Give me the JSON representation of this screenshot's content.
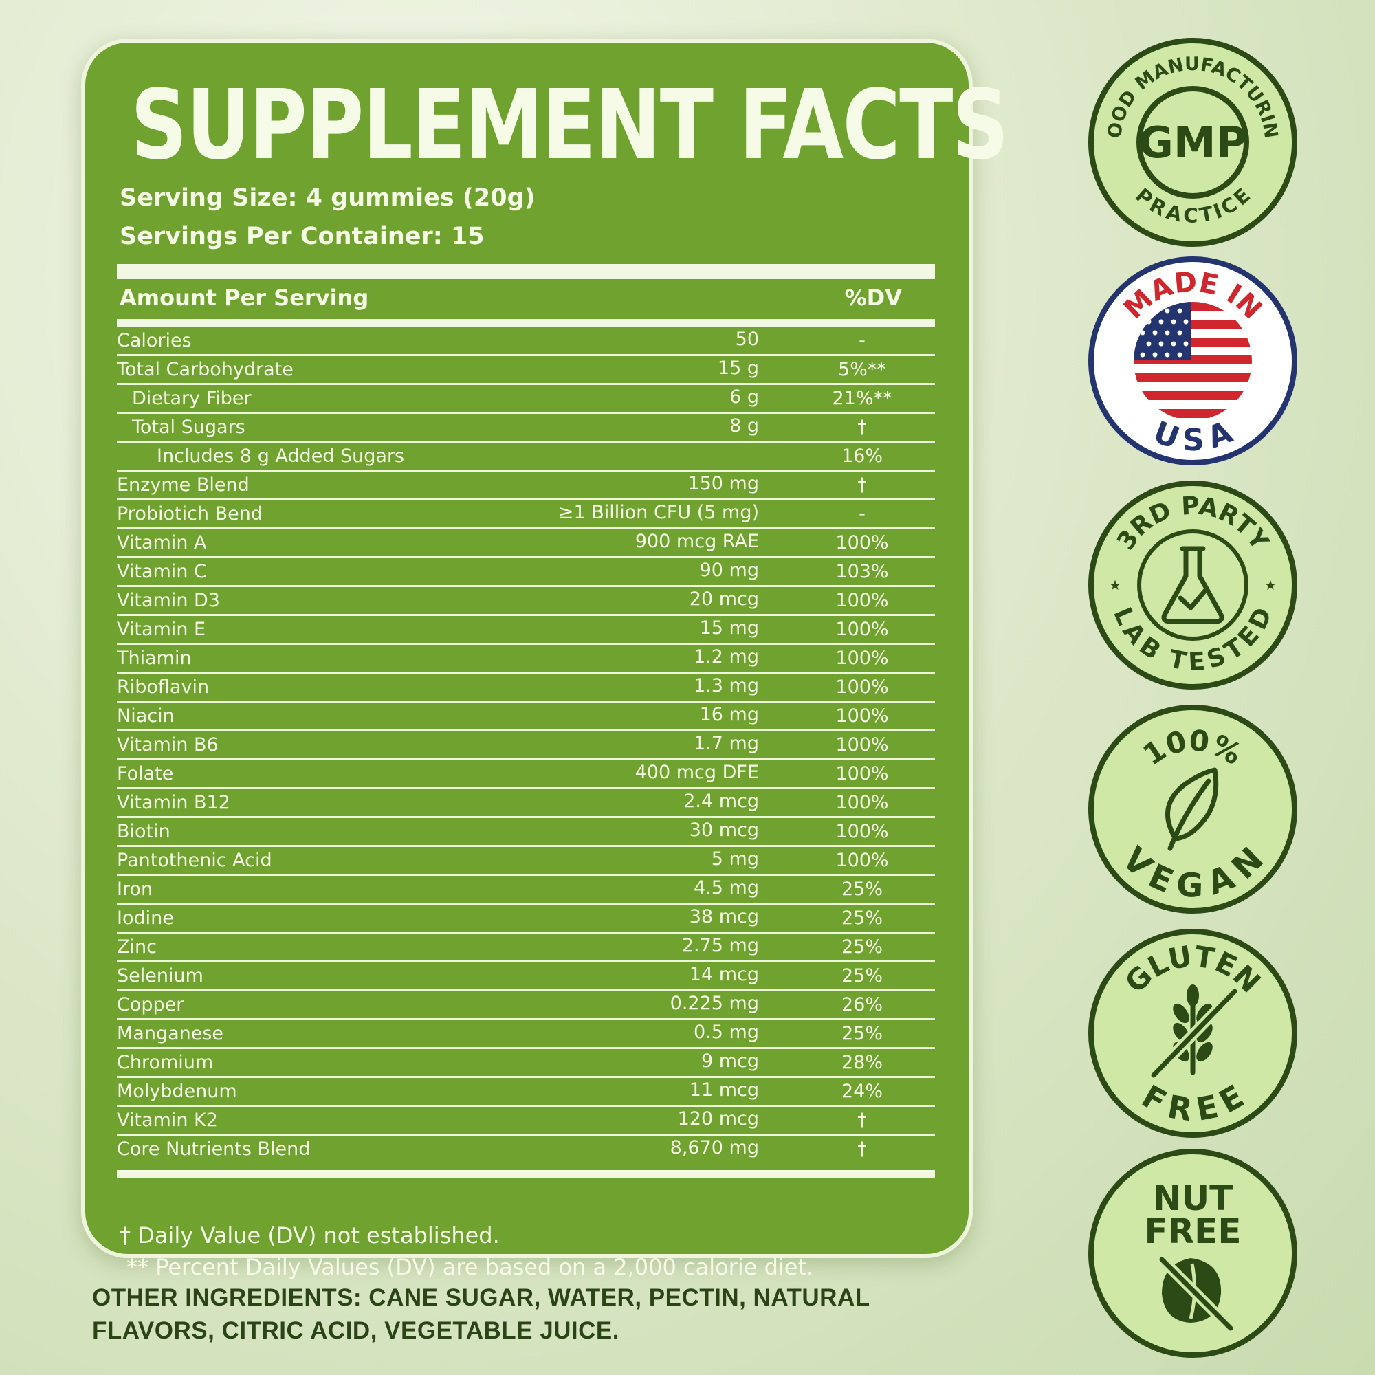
{
  "title": "SUPPLEMENT FACTS",
  "serving_size": "Serving Size: 4 gummies (20g)",
  "servings_per_container": "Servings Per Container: 15",
  "header": {
    "amount": "Amount Per Serving",
    "dv": "%DV"
  },
  "rows": [
    {
      "name": "Calories",
      "amount": "50",
      "dv": "-",
      "indent": 0
    },
    {
      "name": "Total Carbohydrate",
      "amount": "15 g",
      "dv": "5%**",
      "indent": 0
    },
    {
      "name": "Dietary Fiber",
      "amount": "6 g",
      "dv": "21%**",
      "indent": 1
    },
    {
      "name": "Total Sugars",
      "amount": "8 g",
      "dv": "†",
      "indent": 1
    },
    {
      "name": "Includes 8 g Added Sugars",
      "amount": "",
      "dv": "16%",
      "indent": 2
    },
    {
      "name": "Enzyme Blend",
      "amount": "150 mg",
      "dv": "†",
      "indent": 0
    },
    {
      "name": "Probiotich Bend",
      "amount": "≥1 Billion CFU (5 mg)",
      "dv": "-",
      "indent": 0
    },
    {
      "name": "Vitamin A",
      "amount": "900 mcg RAE",
      "dv": "100%",
      "indent": 0
    },
    {
      "name": "Vitamin C",
      "amount": "90 mg",
      "dv": "103%",
      "indent": 0
    },
    {
      "name": "Vitamin D3",
      "amount": "20 mcg",
      "dv": "100%",
      "indent": 0
    },
    {
      "name": "Vitamin E",
      "amount": "15 mg",
      "dv": "100%",
      "indent": 0
    },
    {
      "name": "Thiamin",
      "amount": "1.2 mg",
      "dv": "100%",
      "indent": 0
    },
    {
      "name": "Riboflavin",
      "amount": "1.3 mg",
      "dv": "100%",
      "indent": 0
    },
    {
      "name": "Niacin",
      "amount": "16 mg",
      "dv": "100%",
      "indent": 0
    },
    {
      "name": "Vitamin B6",
      "amount": "1.7 mg",
      "dv": "100%",
      "indent": 0
    },
    {
      "name": "Folate",
      "amount": "400 mcg DFE",
      "dv": "100%",
      "indent": 0
    },
    {
      "name": "Vitamin B12",
      "amount": "2.4 mcg",
      "dv": "100%",
      "indent": 0
    },
    {
      "name": "Biotin",
      "amount": "30 mcg",
      "dv": "100%",
      "indent": 0
    },
    {
      "name": "Pantothenic Acid",
      "amount": "5 mg",
      "dv": "100%",
      "indent": 0
    },
    {
      "name": "Iron",
      "amount": "4.5 mg",
      "dv": "25%",
      "indent": 0
    },
    {
      "name": "Iodine",
      "amount": "38 mcg",
      "dv": "25%",
      "indent": 0
    },
    {
      "name": "Zinc",
      "amount": "2.75 mg",
      "dv": "25%",
      "indent": 0
    },
    {
      "name": "Selenium",
      "amount": "14 mcg",
      "dv": "25%",
      "indent": 0
    },
    {
      "name": "Copper",
      "amount": "0.225 mg",
      "dv": "26%",
      "indent": 0
    },
    {
      "name": "Manganese",
      "amount": "0.5 mg",
      "dv": "25%",
      "indent": 0
    },
    {
      "name": "Chromium",
      "amount": "9 mcg",
      "dv": "28%",
      "indent": 0
    },
    {
      "name": "Molybdenum",
      "amount": "11 mcg",
      "dv": "24%",
      "indent": 0
    },
    {
      "name": "Vitamin K2",
      "amount": "120 mcg",
      "dv": "†",
      "indent": 0
    },
    {
      "name": "Core Nutrients Blend",
      "amount": "8,670 mg",
      "dv": "†",
      "indent": 0
    }
  ],
  "footnote_dagger": "† Daily Value (DV) not established.",
  "footnote_stars": "** Percent Daily Values (DV) are based on a 2,000 calorie diet.",
  "other_ingredients_line1": "OTHER INGREDIENTS: CANE SUGAR, WATER, PECTIN, NATURAL",
  "other_ingredients_line2": "FLAVORS, CITRIC ACID, VEGETABLE JUICE.",
  "badges": {
    "gmp": {
      "top": "GOOD MANUFACTURING",
      "center": "GMP",
      "bottom": "PRACTICE",
      "icon": "gmp-badge"
    },
    "usa": {
      "top": "MADE IN",
      "bottom": "USA",
      "icon": "us-flag-icon"
    },
    "lab": {
      "top": "3RD PARTY",
      "bottom": "LAB TESTED",
      "icon": "flask-check-icon"
    },
    "vegan": {
      "top": "100%",
      "bottom": "VEGAN",
      "icon": "leaf-icon"
    },
    "gluten": {
      "top": "GLUTEN",
      "bottom": "FREE",
      "icon": "wheat-crossed-icon"
    },
    "nut": {
      "top": "NUT",
      "bottom": "FREE",
      "icon": "nut-crossed-icon"
    }
  },
  "colors": {
    "panel_green": "#6fa22e",
    "badge_dark_green": "#2c4a16",
    "badge_fill": "#cfe8a6",
    "usa_red": "#d0262e",
    "usa_blue": "#23346f"
  }
}
